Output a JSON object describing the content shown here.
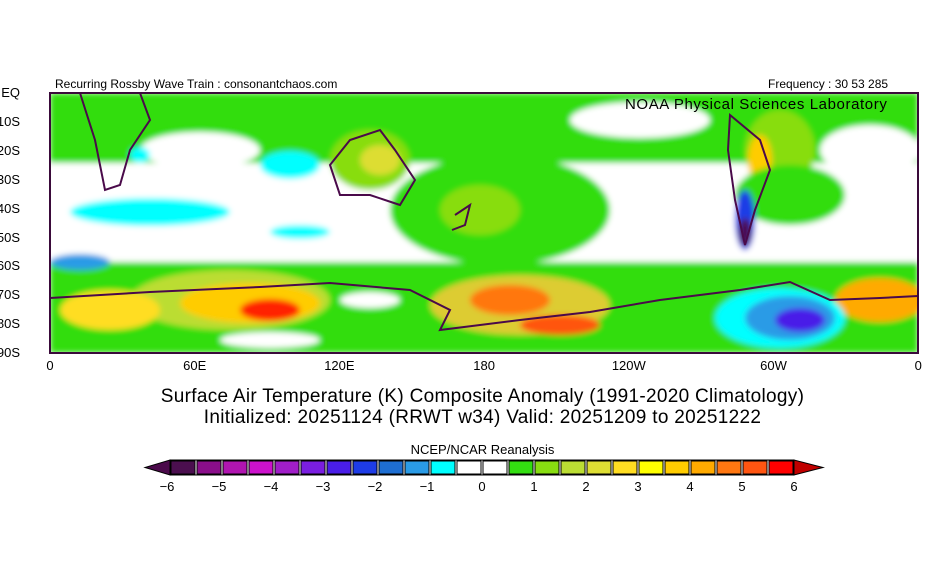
{
  "header": {
    "left": "Recurring Rossby Wave Train : consonantchaos.com",
    "right": "Frequency : 30 53 285",
    "watermark": "NOAA Physical Sciences Laboratory"
  },
  "axes": {
    "y_ticks": [
      "EQ",
      "10S",
      "20S",
      "30S",
      "40S",
      "50S",
      "60S",
      "70S",
      "80S",
      "90S"
    ],
    "x_ticks": [
      "0",
      "60E",
      "120E",
      "180",
      "120W",
      "60W",
      "0"
    ]
  },
  "title": {
    "line1": "Surface Air Temperature (K) Composite Anomaly (1991-2020 Climatology)",
    "line2": "Initialized: 20251124 (RRWT w34) Valid: 20251209 to 20251222"
  },
  "colorbar": {
    "label": "NCEP/NCAR Reanalysis",
    "ticks": [
      "-6",
      "-5",
      "-4",
      "-3",
      "-2",
      "-1",
      "0",
      "1",
      "2",
      "3",
      "4",
      "5",
      "6"
    ],
    "low_color": "#4b0a4b",
    "high_color": "#c00000",
    "colors": [
      "#4b0f4f",
      "#8a0e8a",
      "#b015b0",
      "#cc12cc",
      "#a01ec8",
      "#7a1ee0",
      "#4a1ee8",
      "#1e3ce6",
      "#1e6ed2",
      "#2a9be6",
      "#00ffff",
      "#ffffff",
      "#ffffff",
      "#33dd11",
      "#88dd11",
      "#bbdd33",
      "#dddd33",
      "#ffdd22",
      "#ffff00",
      "#ffcc00",
      "#ffaa00",
      "#ff7711",
      "#ff5511",
      "#ff0000"
    ]
  },
  "map": {
    "lon_range": [
      0,
      360
    ],
    "lat_range": [
      -90,
      0
    ]
  }
}
